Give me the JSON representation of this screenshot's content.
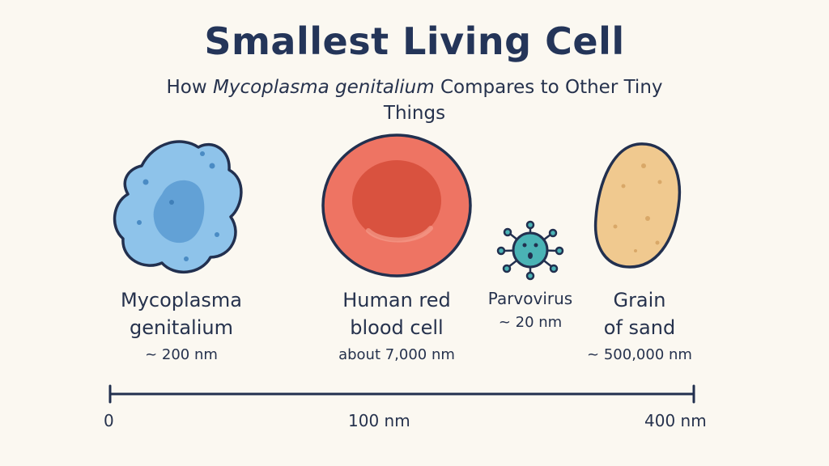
{
  "title": "Smallest Living Cell",
  "subtitle": {
    "prefix": "How ",
    "italic": "Mycoplasma genitalium",
    "line1_suffix": " Compares to Other Tiny",
    "line2": "Things"
  },
  "items": [
    {
      "name_line1": "Mycoplasma",
      "name_line2": "genitalium",
      "size": "~ 200 nm",
      "color": "#8ec3ea"
    },
    {
      "name_line1": "Human red",
      "name_line2": "blood cell",
      "size": "about 7,000 nm",
      "color": "#ee7463"
    },
    {
      "name_line1": "Parvovirus",
      "name_line2": "",
      "size": "~ 20 nm",
      "color": "#4ab3b5"
    },
    {
      "name_line1": "Grain",
      "name_line2": "of sand",
      "size": "~ 500,000 nm",
      "color": "#f0c98f"
    }
  ],
  "scale_bar": {
    "labels": [
      "0",
      "100 nm",
      "400 nm"
    ]
  }
}
